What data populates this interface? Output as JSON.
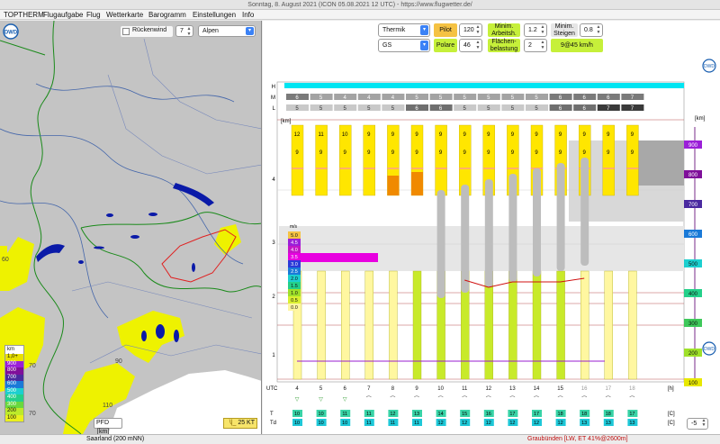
{
  "window": {
    "title": "Sonntag, 8. August 2021 (ICON 05.08.2021 12 UTC) - https://www.flugwetter.de/"
  },
  "menu": [
    "TOPTHERM",
    "Flugaufgabe",
    "Flug",
    "Wetterkarte",
    "Barogramm",
    "Einstellungen",
    "Info"
  ],
  "map": {
    "tailwind_label": "Rückenwind",
    "tailwind_value": "7",
    "region": "Alpen",
    "legend_title": "km",
    "legend": [
      {
        "label": "1,0+",
        "color": "#e8e000"
      },
      {
        "label": "900",
        "color": "#9b1fd8"
      },
      {
        "label": "800",
        "color": "#7f0f9a"
      },
      {
        "label": "700",
        "color": "#4a2aa0"
      },
      {
        "label": "600",
        "color": "#1a7ad8"
      },
      {
        "label": "500",
        "color": "#1ccfcf"
      },
      {
        "label": "400",
        "color": "#24d08a"
      },
      {
        "label": "300",
        "color": "#69d83e"
      },
      {
        "label": "200",
        "color": "#bdea2a"
      },
      {
        "label": "100",
        "color": "#eaf01e"
      }
    ],
    "labels": {
      "v70a": "70",
      "v70b": "70",
      "v90": "90",
      "v110": "110",
      "v60": "60"
    },
    "pfd_label": "PFD",
    "pfd_unit": "km",
    "wind_label": "25 KT"
  },
  "controls": {
    "mode": "Thermik",
    "pilot_label": "Pilot",
    "pilot_value": "120",
    "min_work_label": "Minim. Arbeitsh.",
    "min_work_value": "1.2",
    "min_climb_label": "Minim. Steigen",
    "min_climb_value": "0.8",
    "glider": "GS",
    "polar_label": "Polare",
    "polar_value": "46",
    "wing_load_label": "Flächen- belastung",
    "wing_load_value": "2",
    "result": "9@45 km/h"
  },
  "chart": {
    "rows": [
      "H",
      "M",
      "L"
    ],
    "m_values": [
      "6",
      "5",
      "4",
      "4",
      "4",
      "5",
      "5",
      "5",
      "5",
      "5",
      "5",
      "6",
      "6",
      "6",
      "7"
    ],
    "l_values": [
      "5",
      "5",
      "5",
      "5",
      "5",
      "6",
      "6",
      "5",
      "5",
      "5",
      "5",
      "6",
      "6",
      "7",
      "7"
    ],
    "cloud_col_values": [
      "12",
      "11",
      "10",
      "9",
      "9",
      "9",
      "9",
      "9",
      "9",
      "9",
      "9",
      "9",
      "9",
      "9",
      "9"
    ],
    "y_unit": "[km]",
    "y_ticks": [
      "4",
      "3",
      "2",
      "1"
    ],
    "alt_unit": "[km]",
    "alt_labels": [
      "900",
      "800",
      "700",
      "600",
      "500",
      "400",
      "300",
      "200",
      "100"
    ],
    "alt_colors": [
      "#9b1fd8",
      "#7f0f9a",
      "#4a2aa0",
      "#1a7ad8",
      "#1ccfcf",
      "#24d08a",
      "#3ec85a",
      "#9fe02a",
      "#e8e800"
    ],
    "vz_unit": "m/s",
    "vz_legend": [
      "5.0",
      "4.5",
      "4.0",
      "3.5",
      "3.0",
      "2.5",
      "2.0",
      "1.5",
      "1.0",
      "0.5",
      "0.0"
    ],
    "x_label": "UTC",
    "x_ticks": [
      "4",
      "5",
      "6",
      "7",
      "8",
      "9",
      "10",
      "11",
      "12",
      "13",
      "14",
      "15",
      "16",
      "17",
      "18"
    ],
    "x_unit": "[h]",
    "t_label": "T",
    "td_label": "Td",
    "t_unit": "[C]",
    "t_values": [
      "10",
      "10",
      "11",
      "11",
      "12",
      "13",
      "14",
      "15",
      "16",
      "17",
      "17",
      "18",
      "18",
      "18",
      "17"
    ],
    "td_values": [
      "10",
      "10",
      "10",
      "11",
      "11",
      "11",
      "12",
      "12",
      "12",
      "12",
      "12",
      "12",
      "13",
      "13",
      "13"
    ],
    "offset_value": "-5"
  },
  "status": {
    "left": "Saarland (200 mNN)",
    "right": "Graubünden [LW, ET  41%@2600m]"
  }
}
